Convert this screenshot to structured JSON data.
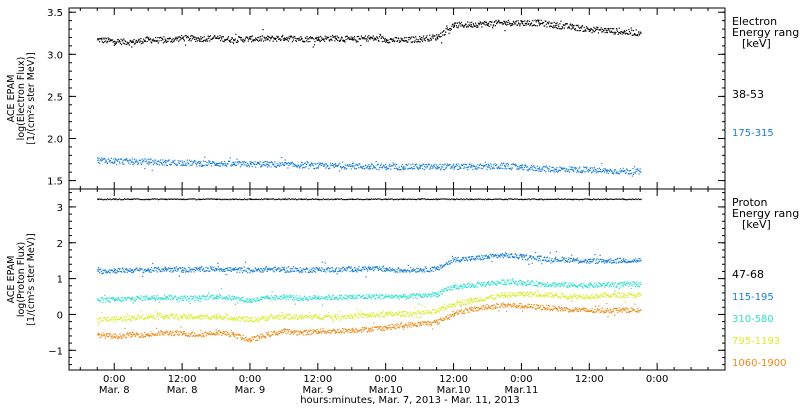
{
  "chart_data": [
    {
      "type": "scatter",
      "panel": "electron",
      "title": "",
      "ylabel": [
        "ACE EPAM",
        "log(Electron Flux)",
        "[1/(cm²s ster MeV)]"
      ],
      "ylim": [
        1.4,
        3.55
      ],
      "yticks": [
        1.5,
        2.0,
        2.5,
        3.0,
        3.5
      ],
      "ytick_labels": [
        "1.5",
        "2.0",
        "2.5",
        "3.0",
        "3.5"
      ],
      "legend_title": [
        "Electron",
        "Energy ranges",
        "[keV]"
      ],
      "series": [
        {
          "name": "38-53",
          "color": "#000000",
          "x": [
            -6,
            0,
            6,
            12,
            18,
            24,
            30,
            36,
            42,
            48,
            54,
            60,
            66,
            72,
            78,
            84,
            90,
            96,
            102,
            108,
            114,
            120,
            126,
            132,
            138,
            144,
            150,
            156,
            162,
            168,
            174,
            180,
            186
          ],
          "y": [
            3.18,
            3.16,
            3.15,
            3.18,
            3.17,
            3.2,
            3.19,
            3.2,
            3.18,
            3.19,
            3.19,
            3.2,
            3.19,
            3.19,
            3.2,
            3.18,
            3.2,
            3.18,
            3.17,
            3.19,
            3.21,
            3.35,
            3.36,
            3.37,
            3.38,
            3.38,
            3.38,
            3.35,
            3.33,
            3.3,
            3.29,
            3.27,
            3.26
          ]
        },
        {
          "name": "175-315",
          "color": "#1a7fd6",
          "x": [
            -6,
            0,
            6,
            12,
            18,
            24,
            30,
            36,
            42,
            48,
            54,
            60,
            66,
            72,
            78,
            84,
            90,
            96,
            102,
            108,
            114,
            120,
            126,
            132,
            138,
            144,
            150,
            156,
            162,
            168,
            174,
            180,
            186
          ],
          "y": [
            1.75,
            1.74,
            1.73,
            1.73,
            1.72,
            1.72,
            1.71,
            1.71,
            1.7,
            1.7,
            1.7,
            1.69,
            1.69,
            1.68,
            1.68,
            1.68,
            1.67,
            1.67,
            1.67,
            1.67,
            1.67,
            1.67,
            1.67,
            1.67,
            1.68,
            1.66,
            1.65,
            1.64,
            1.64,
            1.63,
            1.62,
            1.62,
            1.61
          ]
        }
      ]
    },
    {
      "type": "scatter",
      "panel": "proton",
      "title": "",
      "ylabel": [
        "ACE EPAM",
        "log(Proton Flux)",
        "[1/(cm²s ster MeV)]"
      ],
      "ylim": [
        -1.55,
        3.5
      ],
      "yticks": [
        -1,
        0,
        1,
        2,
        3
      ],
      "ytick_labels": [
        "−1",
        "0",
        "1",
        "2",
        "3"
      ],
      "legend_title": [
        "Proton",
        "Energy ranges",
        "[keV]"
      ],
      "series": [
        {
          "name": "47-68",
          "color": "#000000",
          "x": [
            -6,
            0,
            6,
            12,
            18,
            24,
            30,
            36,
            42,
            48,
            54,
            60,
            66,
            72,
            78,
            84,
            90,
            96,
            102,
            108,
            114,
            120,
            126,
            132,
            138,
            144,
            150,
            156,
            162,
            168,
            174,
            180,
            186
          ],
          "y": [
            3.23,
            3.23,
            3.23,
            3.23,
            3.23,
            3.23,
            3.23,
            3.23,
            3.23,
            3.23,
            3.23,
            3.23,
            3.23,
            3.23,
            3.23,
            3.23,
            3.23,
            3.23,
            3.23,
            3.23,
            3.23,
            3.23,
            3.23,
            3.23,
            3.23,
            3.23,
            3.23,
            3.23,
            3.23,
            3.23,
            3.23,
            3.23,
            3.23
          ]
        },
        {
          "name": "115-195",
          "color": "#1a7fd6",
          "x": [
            -6,
            0,
            6,
            12,
            18,
            24,
            30,
            36,
            42,
            48,
            54,
            60,
            66,
            72,
            78,
            84,
            90,
            96,
            102,
            108,
            114,
            120,
            126,
            132,
            138,
            144,
            150,
            156,
            162,
            168,
            174,
            180,
            186
          ],
          "y": [
            1.22,
            1.24,
            1.25,
            1.25,
            1.28,
            1.26,
            1.27,
            1.29,
            1.26,
            1.24,
            1.28,
            1.26,
            1.25,
            1.27,
            1.26,
            1.28,
            1.29,
            1.27,
            1.25,
            1.27,
            1.28,
            1.55,
            1.57,
            1.62,
            1.67,
            1.62,
            1.58,
            1.55,
            1.54,
            1.5,
            1.51,
            1.52,
            1.52
          ]
        },
        {
          "name": "310-580",
          "color": "#2ee0cf",
          "x": [
            -6,
            0,
            6,
            12,
            18,
            24,
            30,
            36,
            42,
            48,
            54,
            60,
            66,
            72,
            78,
            84,
            90,
            96,
            102,
            108,
            114,
            120,
            126,
            132,
            138,
            144,
            150,
            156,
            162,
            168,
            174,
            180,
            186
          ],
          "y": [
            0.42,
            0.42,
            0.45,
            0.48,
            0.5,
            0.47,
            0.47,
            0.52,
            0.47,
            0.4,
            0.47,
            0.5,
            0.46,
            0.49,
            0.49,
            0.5,
            0.51,
            0.52,
            0.51,
            0.53,
            0.58,
            0.78,
            0.82,
            0.88,
            0.92,
            0.9,
            0.87,
            0.85,
            0.83,
            0.83,
            0.84,
            0.85,
            0.86
          ]
        },
        {
          "name": "795-1193",
          "color": "#d7ee2a",
          "x": [
            -6,
            0,
            6,
            12,
            18,
            24,
            30,
            36,
            42,
            48,
            54,
            60,
            66,
            72,
            78,
            84,
            90,
            96,
            102,
            108,
            114,
            120,
            126,
            132,
            138,
            144,
            150,
            156,
            162,
            168,
            174,
            180,
            186
          ],
          "y": [
            -0.12,
            -0.12,
            -0.08,
            -0.04,
            -0.03,
            -0.05,
            -0.06,
            -0.05,
            -0.08,
            -0.14,
            -0.08,
            -0.04,
            -0.06,
            -0.05,
            -0.05,
            -0.03,
            -0.01,
            0.02,
            0.03,
            0.05,
            0.1,
            0.3,
            0.4,
            0.48,
            0.55,
            0.58,
            0.58,
            0.55,
            0.52,
            0.52,
            0.55,
            0.55,
            0.55
          ]
        },
        {
          "name": "1060-1900",
          "color": "#ef8a17",
          "x": [
            -6,
            0,
            6,
            12,
            18,
            24,
            30,
            36,
            42,
            48,
            54,
            60,
            66,
            72,
            78,
            84,
            90,
            96,
            102,
            108,
            114,
            120,
            126,
            132,
            138,
            144,
            150,
            156,
            162,
            168,
            174,
            180,
            186
          ],
          "y": [
            -0.55,
            -0.6,
            -0.55,
            -0.55,
            -0.5,
            -0.52,
            -0.55,
            -0.48,
            -0.55,
            -0.7,
            -0.55,
            -0.45,
            -0.5,
            -0.45,
            -0.45,
            -0.42,
            -0.4,
            -0.35,
            -0.3,
            -0.25,
            -0.2,
            0.05,
            0.15,
            0.22,
            0.28,
            0.25,
            0.22,
            0.18,
            0.15,
            0.12,
            0.13,
            0.14,
            0.14
          ]
        }
      ]
    }
  ],
  "x_axis": {
    "xlim": [
      -16,
      216
    ],
    "ticks": [
      0,
      24,
      48,
      72,
      96,
      120,
      144,
      168,
      192
    ],
    "tick_times": [
      "0:00",
      "12:00",
      "0:00",
      "12:00",
      "0:00",
      "12:00",
      "0:00",
      "12:00",
      "0:00"
    ],
    "tick_dates": [
      "Mar. 8",
      "Mar. 8",
      "Mar. 9",
      "Mar. 9",
      "Mar.10",
      "Mar.10",
      "Mar.11",
      "",
      ""
    ],
    "xlabel": "hours:minutes, Mar.  7, 2013 - Mar. 11, 2013"
  },
  "colors": {
    "frame": "#000000",
    "background": "#ffffff"
  }
}
